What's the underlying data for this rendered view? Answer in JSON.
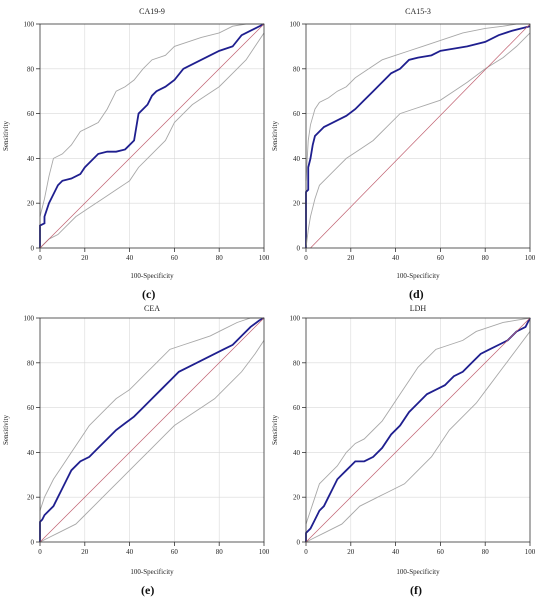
{
  "colors": {
    "roc": "#1f1f8f",
    "ci": "#a8a8a8",
    "diagonal": "#c06070",
    "grid": "#d9d9d9",
    "frame": "#333333"
  },
  "chart_data": [
    {
      "type": "line",
      "title": "CA19-9",
      "caption": "(c)",
      "xlabel": "100-Specificity",
      "ylabel": "Sensitivity",
      "xlim": [
        0,
        100
      ],
      "ylim": [
        0,
        100
      ],
      "xticks": [
        "0",
        "20",
        "40",
        "60",
        "80",
        "100"
      ],
      "yticks": [
        "0",
        "20",
        "40",
        "60",
        "80",
        "100"
      ],
      "grid": true,
      "series": [
        {
          "role": "roc",
          "x": [
            0,
            0,
            2,
            2,
            4,
            6,
            8,
            10,
            14,
            18,
            20,
            22,
            26,
            30,
            34,
            38,
            42,
            44,
            46,
            48,
            50,
            52,
            56,
            60,
            64,
            68,
            72,
            76,
            80,
            86,
            90,
            94,
            100
          ],
          "y": [
            0,
            10,
            11,
            14,
            20,
            24,
            28,
            30,
            31,
            33,
            36,
            38,
            42,
            43,
            43,
            44,
            48,
            60,
            62,
            64,
            68,
            70,
            72,
            75,
            80,
            82,
            84,
            86,
            88,
            90,
            95,
            97,
            100
          ]
        },
        {
          "role": "ci-upper",
          "x": [
            0,
            2,
            4,
            6,
            10,
            14,
            18,
            22,
            26,
            30,
            34,
            38,
            42,
            46,
            50,
            56,
            60,
            66,
            72,
            80,
            86,
            92,
            100
          ],
          "y": [
            14,
            22,
            32,
            40,
            42,
            46,
            52,
            54,
            56,
            62,
            70,
            72,
            75,
            80,
            84,
            86,
            90,
            92,
            94,
            96,
            99,
            100,
            100
          ]
        },
        {
          "role": "ci-lower",
          "x": [
            0,
            4,
            8,
            12,
            16,
            22,
            28,
            34,
            40,
            44,
            48,
            52,
            56,
            60,
            64,
            68,
            74,
            80,
            86,
            92,
            96,
            100
          ],
          "y": [
            0,
            4,
            6,
            10,
            14,
            18,
            22,
            26,
            30,
            36,
            40,
            44,
            48,
            56,
            60,
            64,
            68,
            72,
            78,
            84,
            90,
            96
          ]
        },
        {
          "role": "diagonal",
          "x": [
            0,
            100
          ],
          "y": [
            0,
            100
          ]
        }
      ]
    },
    {
      "type": "line",
      "title": "CA15-3",
      "caption": "(d)",
      "xlabel": "100-Specificity",
      "ylabel": "Sensitivity",
      "xlim": [
        0,
        100
      ],
      "ylim": [
        0,
        100
      ],
      "xticks": [
        "0",
        "20",
        "40",
        "60",
        "80",
        "100"
      ],
      "yticks": [
        "0",
        "20",
        "40",
        "60",
        "80",
        "100"
      ],
      "grid": true,
      "series": [
        {
          "role": "roc",
          "x": [
            0,
            0,
            1,
            1,
            2,
            3,
            4,
            6,
            8,
            10,
            14,
            18,
            22,
            26,
            30,
            34,
            38,
            42,
            46,
            50,
            56,
            60,
            66,
            72,
            80,
            86,
            92,
            100
          ],
          "y": [
            0,
            25,
            26,
            36,
            40,
            46,
            50,
            52,
            54,
            55,
            57,
            59,
            62,
            66,
            70,
            74,
            78,
            80,
            84,
            85,
            86,
            88,
            89,
            90,
            92,
            95,
            97,
            99
          ]
        },
        {
          "role": "ci-upper",
          "x": [
            0,
            1,
            2,
            4,
            6,
            10,
            14,
            18,
            22,
            28,
            34,
            40,
            46,
            52,
            58,
            64,
            70,
            80,
            88,
            94,
            100
          ],
          "y": [
            30,
            48,
            55,
            62,
            65,
            67,
            70,
            72,
            76,
            80,
            84,
            86,
            88,
            90,
            92,
            94,
            96,
            98,
            99,
            100,
            100
          ]
        },
        {
          "role": "ci-lower",
          "x": [
            0,
            1,
            2,
            4,
            6,
            10,
            14,
            18,
            24,
            30,
            36,
            42,
            48,
            54,
            60,
            66,
            72,
            80,
            88,
            94,
            100
          ],
          "y": [
            0,
            8,
            14,
            22,
            28,
            32,
            36,
            40,
            44,
            48,
            54,
            60,
            62,
            64,
            66,
            70,
            74,
            80,
            85,
            90,
            96
          ]
        },
        {
          "role": "diagonal",
          "x": [
            2,
            100
          ],
          "y": [
            0,
            100
          ]
        }
      ]
    },
    {
      "type": "line",
      "title": "CEA",
      "caption": "(e)",
      "xlabel": "100-Specificity",
      "ylabel": "Sensitivity",
      "xlim": [
        0,
        100
      ],
      "ylim": [
        0,
        100
      ],
      "xticks": [
        "0",
        "20",
        "40",
        "60",
        "80",
        "100"
      ],
      "yticks": [
        "0",
        "20",
        "40",
        "60",
        "80",
        "100"
      ],
      "grid": true,
      "series": [
        {
          "role": "roc",
          "x": [
            0,
            0,
            1,
            2,
            4,
            6,
            8,
            10,
            12,
            14,
            18,
            22,
            26,
            30,
            34,
            38,
            42,
            46,
            50,
            54,
            58,
            62,
            66,
            70,
            74,
            78,
            82,
            86,
            90,
            94,
            98,
            100
          ],
          "y": [
            0,
            9,
            10,
            12,
            14,
            16,
            20,
            24,
            28,
            32,
            36,
            38,
            42,
            46,
            50,
            53,
            56,
            60,
            64,
            68,
            72,
            76,
            78,
            80,
            82,
            84,
            86,
            88,
            92,
            96,
            99,
            100
          ]
        },
        {
          "role": "ci-upper",
          "x": [
            0,
            2,
            4,
            6,
            10,
            14,
            18,
            22,
            26,
            30,
            34,
            40,
            46,
            52,
            58,
            64,
            70,
            76,
            82,
            88,
            94,
            100
          ],
          "y": [
            14,
            20,
            24,
            28,
            34,
            40,
            46,
            52,
            56,
            60,
            64,
            68,
            74,
            80,
            86,
            88,
            90,
            92,
            95,
            98,
            100,
            100
          ]
        },
        {
          "role": "ci-lower",
          "x": [
            0,
            4,
            8,
            12,
            16,
            20,
            24,
            28,
            32,
            36,
            40,
            44,
            48,
            52,
            56,
            60,
            66,
            72,
            78,
            84,
            90,
            96,
            100
          ],
          "y": [
            0,
            2,
            4,
            6,
            8,
            12,
            16,
            20,
            24,
            28,
            32,
            36,
            40,
            44,
            48,
            52,
            56,
            60,
            64,
            70,
            76,
            84,
            90
          ]
        },
        {
          "role": "diagonal",
          "x": [
            0,
            100
          ],
          "y": [
            0,
            100
          ]
        }
      ]
    },
    {
      "type": "line",
      "title": "LDH",
      "caption": "(f)",
      "xlabel": "100-Specificity",
      "ylabel": "Sensitivity",
      "xlim": [
        0,
        100
      ],
      "ylim": [
        0,
        100
      ],
      "xticks": [
        "0",
        "20",
        "40",
        "60",
        "80",
        "100"
      ],
      "yticks": [
        "0",
        "20",
        "40",
        "60",
        "80",
        "100"
      ],
      "grid": true,
      "series": [
        {
          "role": "roc",
          "x": [
            0,
            0,
            2,
            4,
            6,
            8,
            10,
            12,
            14,
            16,
            18,
            20,
            22,
            26,
            30,
            34,
            38,
            42,
            46,
            50,
            54,
            58,
            62,
            66,
            70,
            74,
            78,
            82,
            86,
            90,
            94,
            98,
            100
          ],
          "y": [
            0,
            4,
            6,
            10,
            14,
            16,
            20,
            24,
            28,
            30,
            32,
            34,
            36,
            36,
            38,
            42,
            48,
            52,
            58,
            62,
            66,
            68,
            70,
            74,
            76,
            80,
            84,
            86,
            88,
            90,
            94,
            96,
            100
          ]
        },
        {
          "role": "ci-upper",
          "x": [
            0,
            2,
            4,
            6,
            10,
            14,
            18,
            22,
            26,
            30,
            34,
            38,
            42,
            46,
            50,
            54,
            58,
            64,
            70,
            76,
            82,
            88,
            94,
            100
          ],
          "y": [
            8,
            14,
            20,
            26,
            30,
            34,
            40,
            44,
            46,
            50,
            54,
            60,
            66,
            72,
            78,
            82,
            86,
            88,
            90,
            94,
            96,
            98,
            99,
            100
          ]
        },
        {
          "role": "ci-lower",
          "x": [
            0,
            4,
            8,
            12,
            16,
            20,
            24,
            28,
            32,
            36,
            40,
            44,
            48,
            52,
            56,
            60,
            64,
            70,
            76,
            82,
            88,
            94,
            100
          ],
          "y": [
            0,
            2,
            4,
            6,
            8,
            12,
            16,
            18,
            20,
            22,
            24,
            26,
            30,
            34,
            38,
            44,
            50,
            56,
            62,
            70,
            78,
            86,
            94
          ]
        },
        {
          "role": "diagonal",
          "x": [
            0,
            100
          ],
          "y": [
            0,
            100
          ]
        }
      ]
    }
  ]
}
